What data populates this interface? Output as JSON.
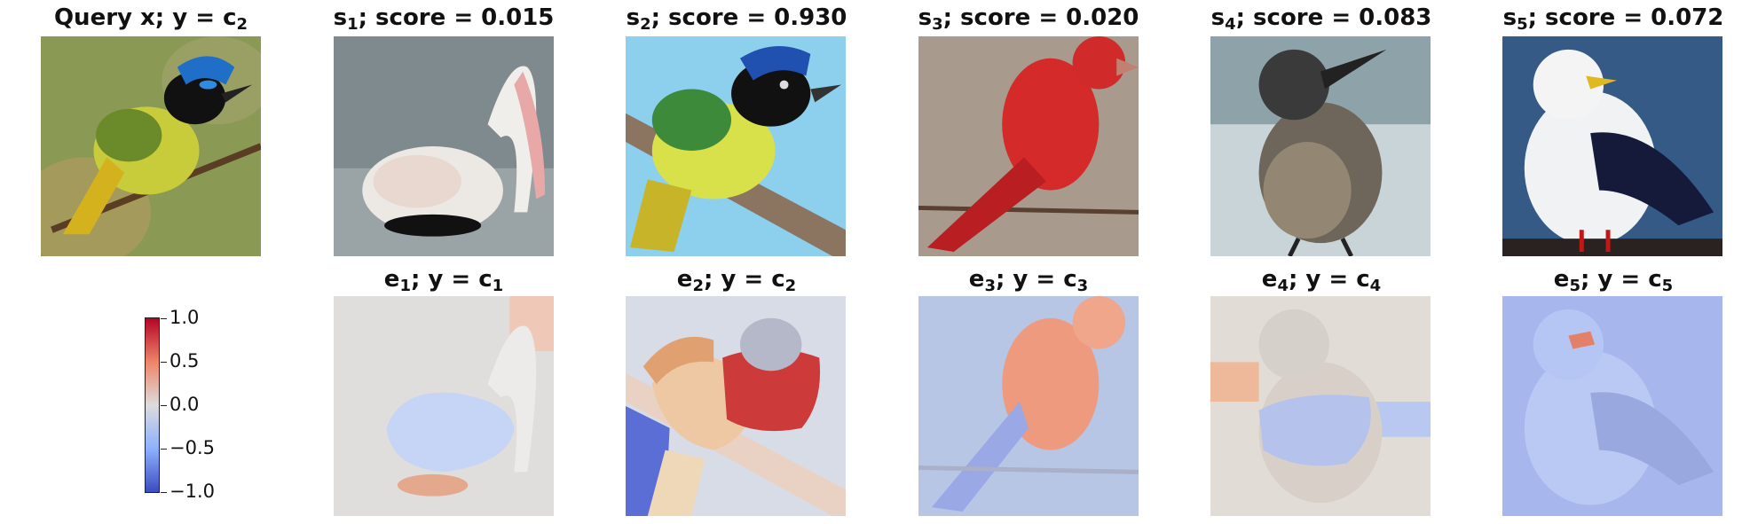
{
  "top_row": [
    {
      "symbol": "Query x; y = c",
      "sub": "2",
      "rest": ""
    },
    {
      "symbol": "s",
      "sub": "1",
      "rest": "; score = 0.015"
    },
    {
      "symbol": "s",
      "sub": "2",
      "rest": "; score = 0.930"
    },
    {
      "symbol": "s",
      "sub": "3",
      "rest": "; score = 0.020"
    },
    {
      "symbol": "s",
      "sub": "4",
      "rest": "; score = 0.083"
    },
    {
      "symbol": "s",
      "sub": "5",
      "rest": "; score = 0.072"
    }
  ],
  "bottom_row": [
    {
      "symbol": "e",
      "sub": "1",
      "rest": "; y = c",
      "sub2": "1"
    },
    {
      "symbol": "e",
      "sub": "2",
      "rest": "; y = c",
      "sub2": "2"
    },
    {
      "symbol": "e",
      "sub": "3",
      "rest": "; y = c",
      "sub2": "3"
    },
    {
      "symbol": "e",
      "sub": "4",
      "rest": "; y = c",
      "sub2": "4"
    },
    {
      "symbol": "e",
      "sub": "5",
      "rest": "; y = c",
      "sub2": "5"
    }
  ],
  "colorbar": {
    "ticks": [
      "1.0",
      "0.5",
      "0.0",
      "−0.5",
      "−1.0"
    ],
    "colors": {
      "high": "#b40426",
      "mid": "#dddcdc",
      "low": "#3b4cc0"
    }
  }
}
